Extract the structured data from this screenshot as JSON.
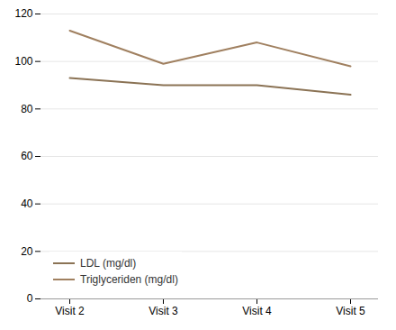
{
  "chart_data": {
    "type": "line",
    "categories": [
      "Visit 2",
      "Visit 3",
      "Visit 4",
      "Visit 5"
    ],
    "series": [
      {
        "name": "LDL (mg/dl)",
        "color": "#8b7355",
        "values": [
          93,
          90,
          90,
          86
        ]
      },
      {
        "name": "Triglyceriden (mg/dl)",
        "color": "#a08060",
        "values": [
          113,
          99,
          108,
          98
        ]
      }
    ],
    "ylim": [
      0,
      120
    ],
    "yticks": [
      0,
      20,
      40,
      60,
      80,
      100,
      120
    ],
    "grid": true,
    "legend": "lower left"
  }
}
